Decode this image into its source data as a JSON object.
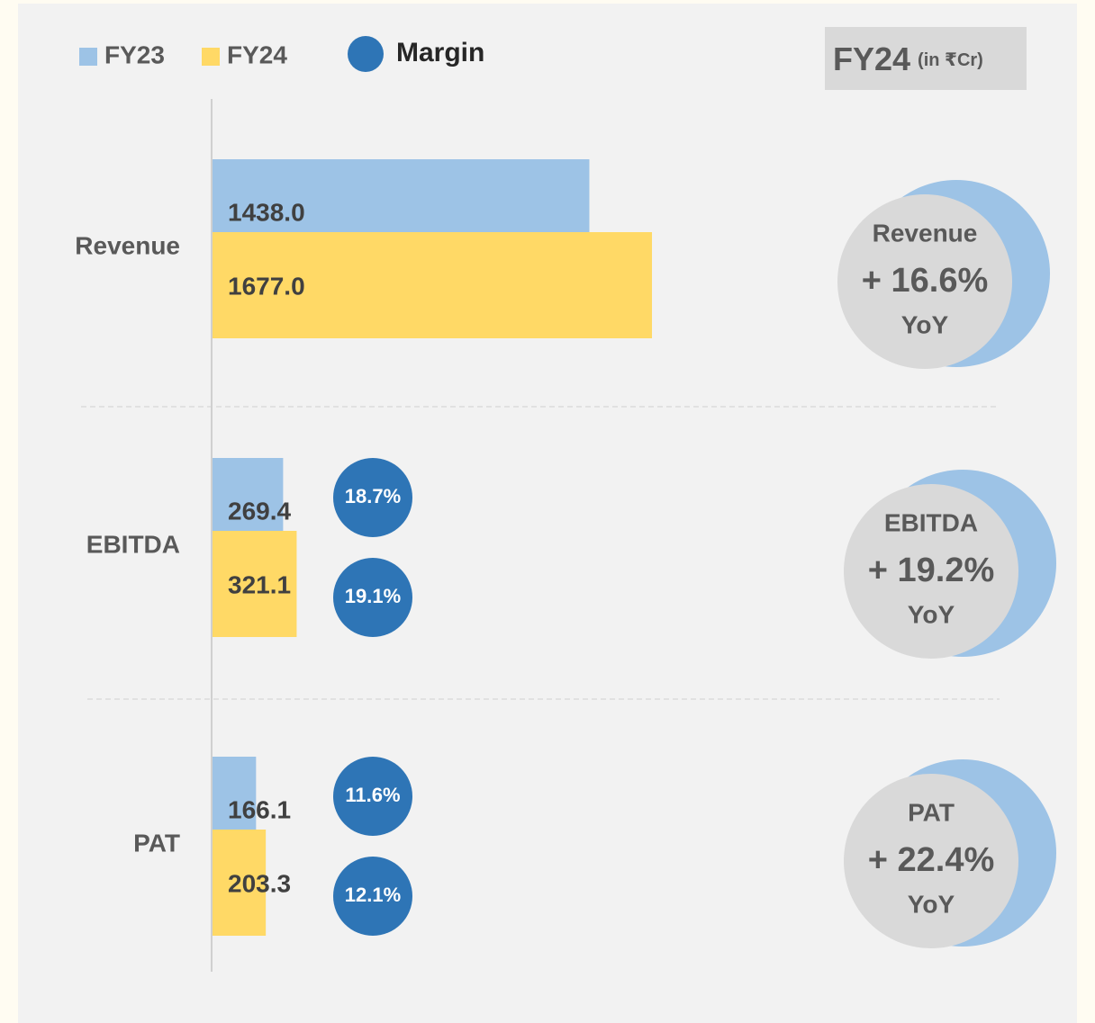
{
  "chart_data": {
    "type": "bar",
    "orientation": "horizontal",
    "categories": [
      "Revenue",
      "EBITDA",
      "PAT"
    ],
    "series": [
      {
        "name": "FY23",
        "color": "#9dc3e6",
        "values": [
          1438.0,
          269.4,
          166.1
        ],
        "value_labels": [
          "1438.0",
          "269.4",
          "166.1"
        ]
      },
      {
        "name": "FY24",
        "color": "#ffd966",
        "values": [
          1677.0,
          321.1,
          203.3
        ],
        "value_labels": [
          "1677.0",
          "321.1",
          "203.3"
        ]
      }
    ],
    "xlim": [
      0,
      3000
    ],
    "margin": {
      "name": "Margin",
      "color": "#2e75b6",
      "series": [
        {
          "values": [
            null,
            18.7,
            11.6
          ],
          "value_labels": [
            null,
            "18.7%",
            "11.6%"
          ]
        },
        {
          "values": [
            null,
            19.1,
            12.1
          ],
          "value_labels": [
            null,
            "19.1%",
            "12.1%"
          ]
        }
      ]
    },
    "badge": {
      "title": "FY24",
      "subtitle": "(in ₹Cr)"
    },
    "growth": {
      "values": [
        16.6,
        19.2,
        22.4
      ],
      "value_labels": [
        "+ 16.6%",
        "+ 19.2%",
        "+ 22.4%"
      ],
      "suffix": "YoY",
      "color": "#9dc3e6"
    }
  }
}
